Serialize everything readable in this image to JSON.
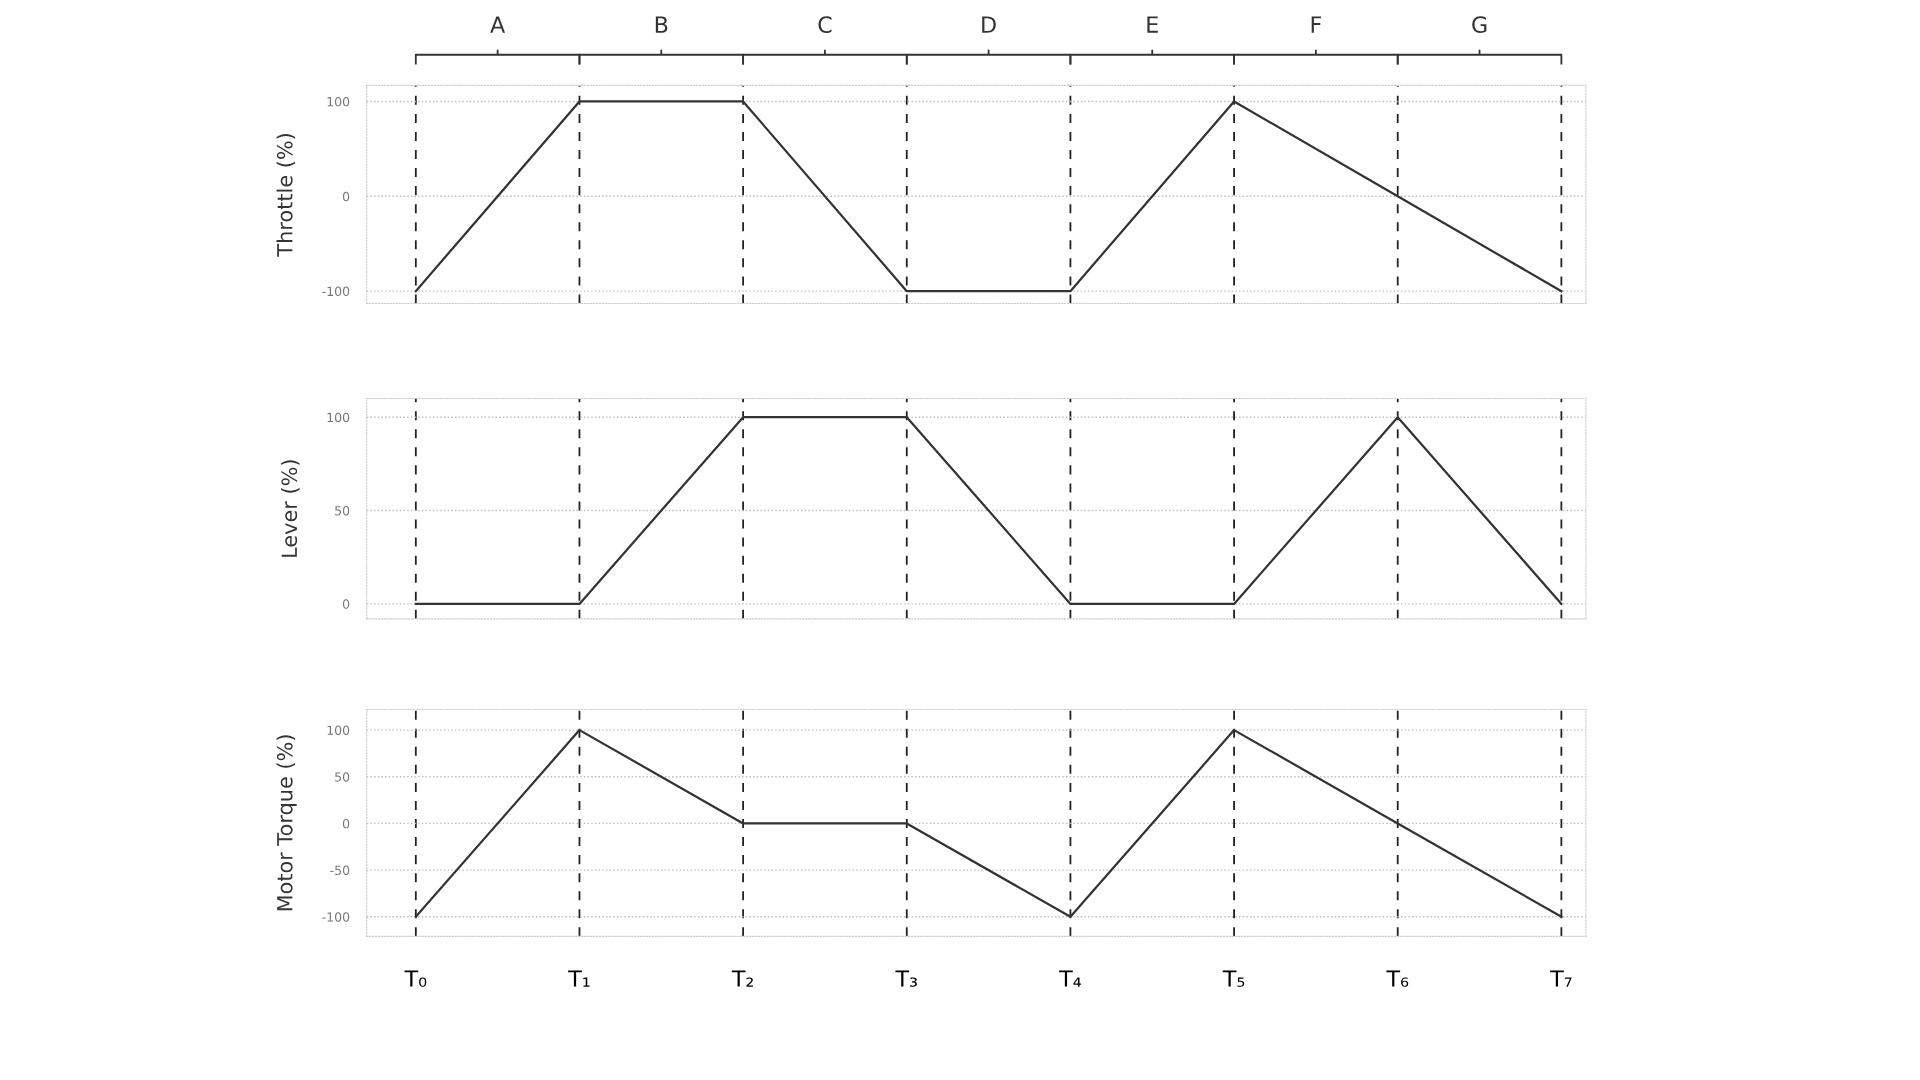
{
  "chart_data": [
    {
      "type": "line",
      "ylabel": "Throttle (%)",
      "series": [
        {
          "color": "#333333",
          "values": [
            -100,
            100,
            100,
            -100,
            -100,
            100,
            0,
            -100
          ]
        }
      ],
      "ylim": [
        -113,
        117
      ],
      "yticks": [
        -100,
        0,
        100
      ],
      "tick_labels": "y",
      "grid": true,
      "marker": "none",
      "line_style": "solid",
      "annotations": [
        "A",
        "B",
        "C",
        "D",
        "E",
        "F",
        "G"
      ]
    },
    {
      "type": "line",
      "ylabel": "Lever (%)",
      "series": [
        {
          "color": "#333333",
          "values": [
            0,
            0,
            100,
            100,
            0,
            0,
            100,
            0
          ]
        }
      ],
      "ylim": [
        -8,
        110
      ],
      "yticks": [
        0,
        50,
        100
      ],
      "tick_labels": "y",
      "grid": true,
      "marker": "none",
      "line_style": "solid"
    },
    {
      "type": "line",
      "ylabel": "Motor Torque (%)",
      "categories": [
        "T₀",
        "T₁",
        "T₂",
        "T₃",
        "T₄",
        "T₅",
        "T₆",
        "T₇"
      ],
      "series": [
        {
          "color": "#333333",
          "values": [
            -100,
            100,
            0,
            0,
            -100,
            100,
            0,
            -100
          ]
        }
      ],
      "ylim": [
        -121,
        122
      ],
      "yticks": [
        -100,
        -50,
        0,
        50,
        100
      ],
      "grid": true,
      "marker": "none",
      "line_style": "solid"
    }
  ]
}
